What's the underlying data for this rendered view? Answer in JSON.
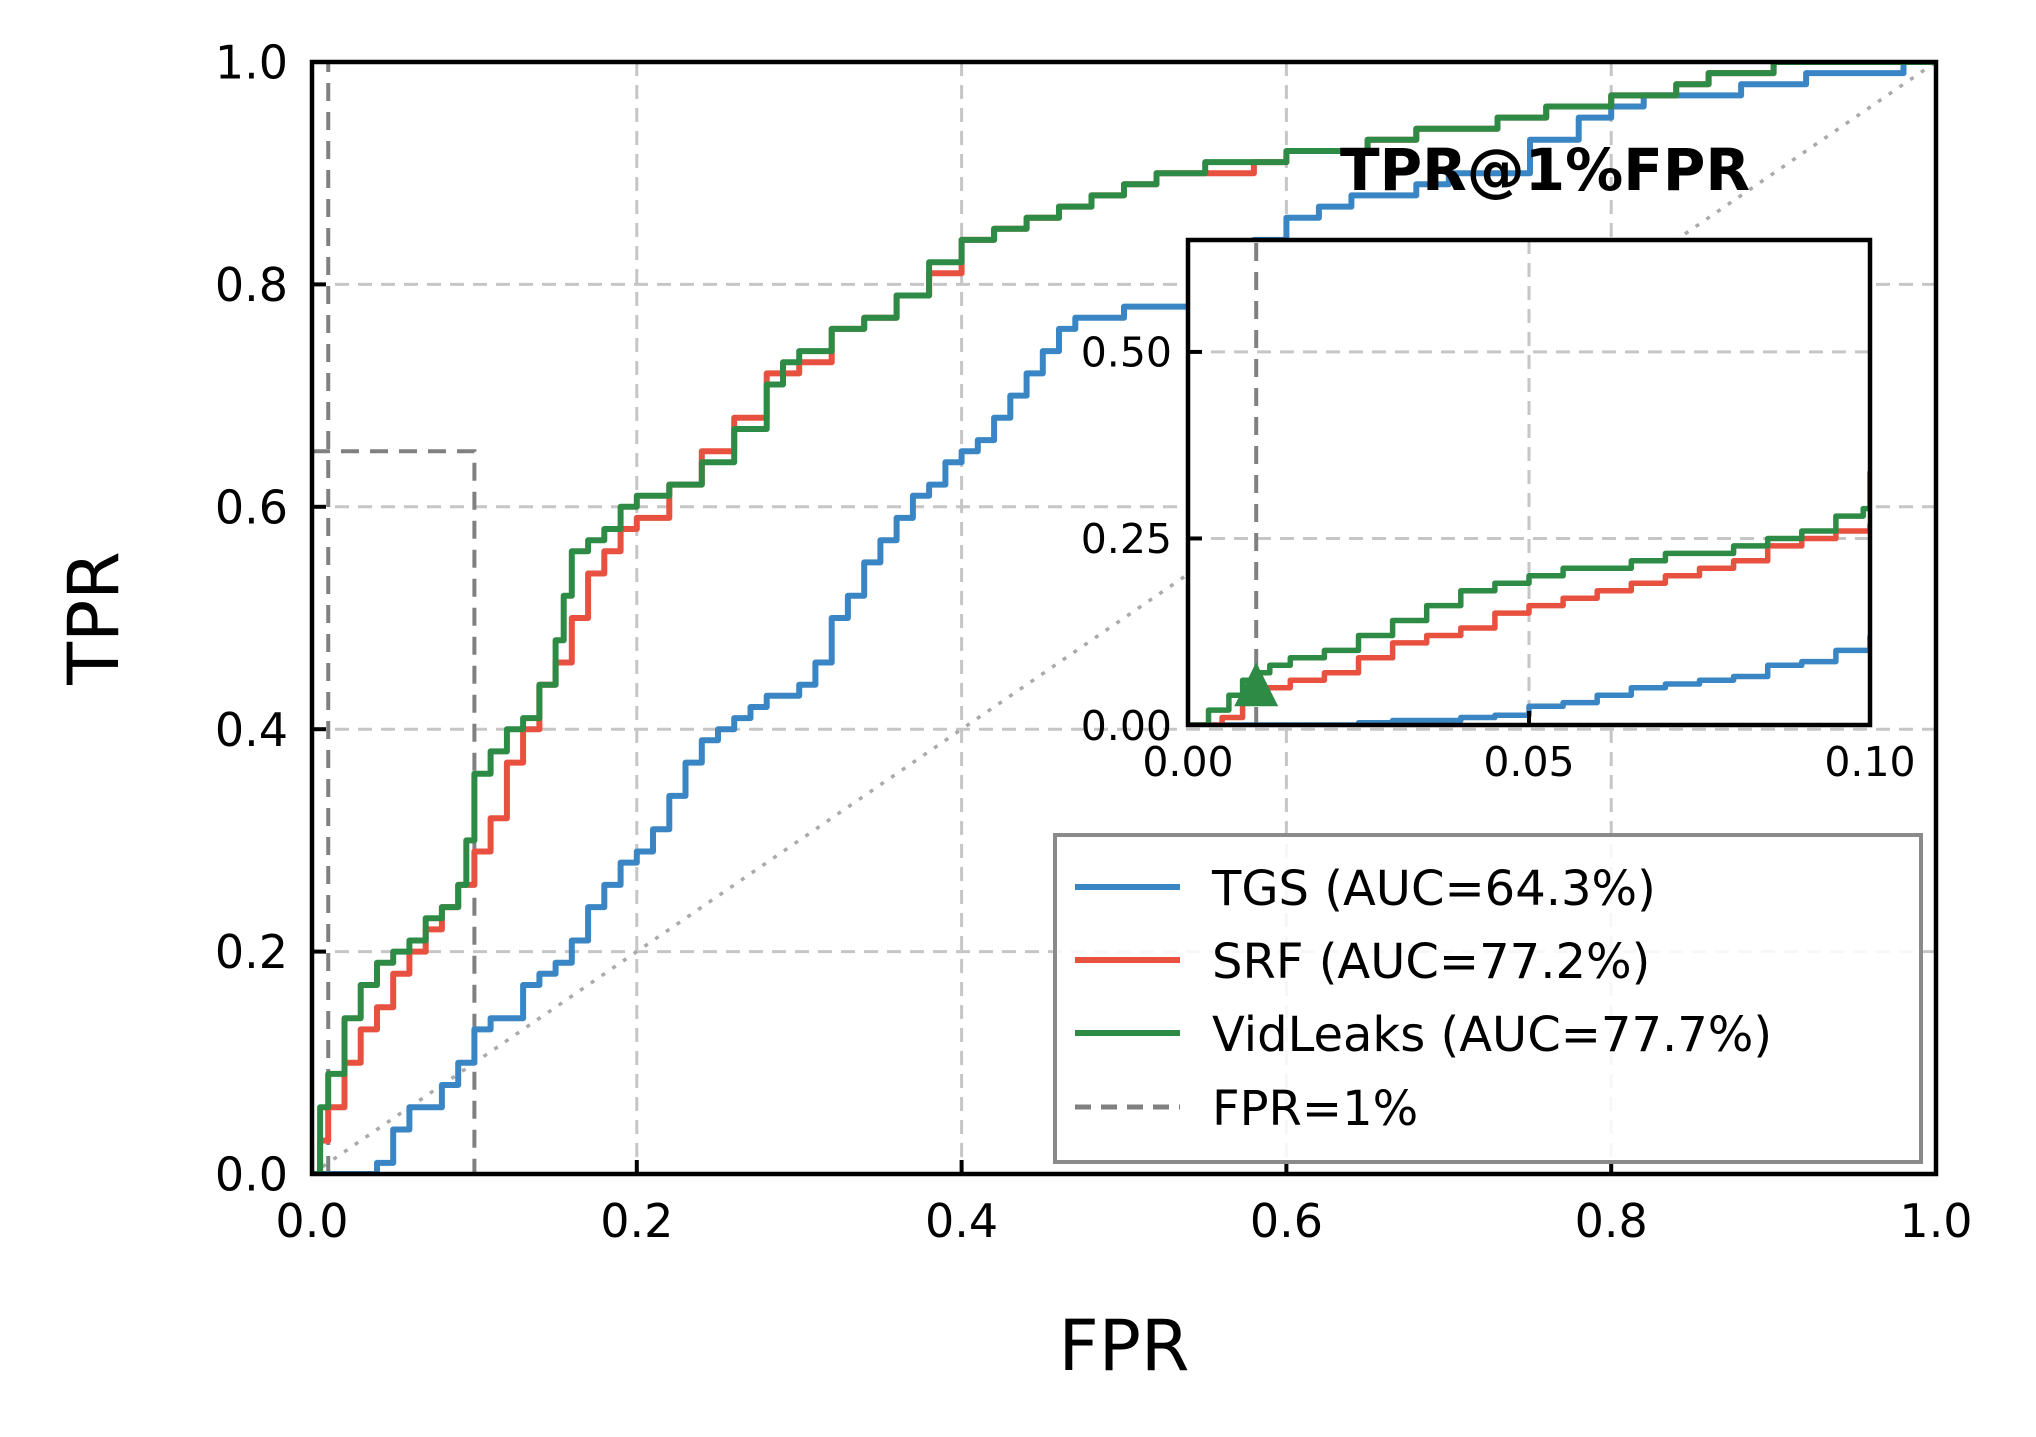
{
  "chart_data": [
    {
      "id": "main",
      "type": "line",
      "xlabel": "FPR",
      "ylabel": "TPR",
      "xlim": [
        0.0,
        1.0
      ],
      "ylim": [
        0.0,
        1.0
      ],
      "xticks": [
        "0.0",
        "0.2",
        "0.4",
        "0.6",
        "0.8",
        "1.0"
      ],
      "yticks": [
        "0.0",
        "0.2",
        "0.4",
        "0.6",
        "0.8",
        "1.0"
      ],
      "grid": true,
      "legend_position": "lower-right",
      "legend": [
        {
          "label": "TGS (AUC=64.3%)",
          "color": "#3a86c4",
          "style": "solid"
        },
        {
          "label": "SRF (AUC=77.2%)",
          "color": "#e8513f",
          "style": "solid"
        },
        {
          "label": "VidLeaks (AUC=77.7%)",
          "color": "#2e8b45",
          "style": "solid"
        },
        {
          "label": "FPR=1%",
          "color": "#808080",
          "style": "dashed"
        }
      ],
      "reference_lines": [
        {
          "name": "chance",
          "points": [
            [
              0,
              0
            ],
            [
              1,
              1
            ]
          ],
          "style": "dotted",
          "color": "#aaaaaa"
        },
        {
          "name": "FPR=1%",
          "x": 0.01,
          "style": "dashed",
          "color": "#808080"
        }
      ],
      "zoom_region": {
        "x": [
          0.0,
          0.1
        ],
        "y": [
          0.0,
          0.65
        ]
      },
      "series": [
        {
          "name": "TGS",
          "color": "#3a86c4",
          "x": [
            0.0,
            0.02,
            0.04,
            0.05,
            0.06,
            0.08,
            0.09,
            0.1,
            0.11,
            0.12,
            0.13,
            0.14,
            0.15,
            0.16,
            0.17,
            0.18,
            0.19,
            0.2,
            0.21,
            0.22,
            0.23,
            0.24,
            0.25,
            0.26,
            0.27,
            0.28,
            0.3,
            0.31,
            0.32,
            0.33,
            0.34,
            0.35,
            0.36,
            0.37,
            0.38,
            0.39,
            0.4,
            0.41,
            0.42,
            0.43,
            0.44,
            0.45,
            0.46,
            0.47,
            0.48,
            0.5,
            0.52,
            0.54,
            0.55,
            0.56,
            0.58,
            0.6,
            0.62,
            0.64,
            0.66,
            0.68,
            0.7,
            0.72,
            0.75,
            0.78,
            0.8,
            0.82,
            0.85,
            0.88,
            0.9,
            0.92,
            0.95,
            0.98,
            1.0
          ],
          "y": [
            0.0,
            0.0,
            0.01,
            0.04,
            0.06,
            0.08,
            0.1,
            0.13,
            0.14,
            0.14,
            0.17,
            0.18,
            0.19,
            0.21,
            0.24,
            0.26,
            0.28,
            0.29,
            0.31,
            0.34,
            0.37,
            0.39,
            0.4,
            0.41,
            0.42,
            0.43,
            0.44,
            0.46,
            0.5,
            0.52,
            0.55,
            0.57,
            0.59,
            0.61,
            0.62,
            0.64,
            0.65,
            0.66,
            0.68,
            0.7,
            0.72,
            0.74,
            0.76,
            0.77,
            0.77,
            0.78,
            0.78,
            0.79,
            0.81,
            0.82,
            0.84,
            0.86,
            0.87,
            0.88,
            0.88,
            0.89,
            0.9,
            0.9,
            0.93,
            0.95,
            0.96,
            0.97,
            0.97,
            0.98,
            0.98,
            0.99,
            0.99,
            1.0,
            1.0
          ]
        },
        {
          "name": "SRF",
          "color": "#e8513f",
          "x": [
            0.0,
            0.005,
            0.01,
            0.02,
            0.03,
            0.04,
            0.05,
            0.06,
            0.07,
            0.08,
            0.09,
            0.1,
            0.11,
            0.12,
            0.13,
            0.14,
            0.15,
            0.16,
            0.17,
            0.18,
            0.19,
            0.2,
            0.22,
            0.24,
            0.26,
            0.28,
            0.3,
            0.32,
            0.34,
            0.36,
            0.38,
            0.4,
            0.42,
            0.44,
            0.46,
            0.48,
            0.5,
            0.52,
            0.55,
            0.58,
            0.6,
            0.62,
            0.65,
            0.68,
            0.7,
            0.73,
            0.76,
            0.78,
            0.8,
            0.82,
            0.84,
            0.86,
            0.88,
            0.9,
            0.93,
            0.96,
            1.0
          ],
          "y": [
            0.0,
            0.03,
            0.06,
            0.1,
            0.13,
            0.15,
            0.18,
            0.2,
            0.22,
            0.24,
            0.26,
            0.29,
            0.32,
            0.37,
            0.4,
            0.44,
            0.46,
            0.5,
            0.54,
            0.56,
            0.58,
            0.59,
            0.62,
            0.65,
            0.68,
            0.72,
            0.73,
            0.76,
            0.77,
            0.79,
            0.81,
            0.84,
            0.85,
            0.86,
            0.87,
            0.88,
            0.89,
            0.9,
            0.9,
            0.91,
            0.92,
            0.92,
            0.93,
            0.94,
            0.94,
            0.95,
            0.96,
            0.96,
            0.97,
            0.97,
            0.98,
            0.99,
            0.99,
            1.0,
            1.0,
            1.0,
            1.0
          ]
        },
        {
          "name": "VidLeaks",
          "color": "#2e8b45",
          "x": [
            0.0,
            0.005,
            0.01,
            0.02,
            0.03,
            0.04,
            0.05,
            0.06,
            0.07,
            0.08,
            0.09,
            0.095,
            0.1,
            0.11,
            0.12,
            0.13,
            0.14,
            0.15,
            0.155,
            0.16,
            0.17,
            0.18,
            0.19,
            0.2,
            0.22,
            0.24,
            0.26,
            0.28,
            0.29,
            0.3,
            0.32,
            0.34,
            0.36,
            0.38,
            0.4,
            0.42,
            0.44,
            0.46,
            0.48,
            0.5,
            0.52,
            0.55,
            0.58,
            0.6,
            0.62,
            0.65,
            0.68,
            0.7,
            0.73,
            0.76,
            0.78,
            0.8,
            0.82,
            0.84,
            0.86,
            0.88,
            0.9,
            0.93,
            0.96,
            1.0
          ],
          "y": [
            0.0,
            0.06,
            0.09,
            0.14,
            0.17,
            0.19,
            0.2,
            0.21,
            0.23,
            0.24,
            0.26,
            0.3,
            0.36,
            0.38,
            0.4,
            0.41,
            0.44,
            0.48,
            0.52,
            0.56,
            0.57,
            0.58,
            0.6,
            0.61,
            0.62,
            0.64,
            0.67,
            0.71,
            0.73,
            0.74,
            0.76,
            0.77,
            0.79,
            0.82,
            0.84,
            0.85,
            0.86,
            0.87,
            0.88,
            0.89,
            0.9,
            0.91,
            0.91,
            0.92,
            0.92,
            0.93,
            0.94,
            0.94,
            0.95,
            0.96,
            0.96,
            0.97,
            0.97,
            0.98,
            0.99,
            0.99,
            1.0,
            1.0,
            1.0,
            1.0
          ]
        }
      ]
    },
    {
      "id": "inset",
      "type": "line",
      "title": "TPR@1%FPR",
      "xlim": [
        0.0,
        0.1
      ],
      "ylim": [
        0.0,
        0.65
      ],
      "xticks": [
        "0.00",
        "0.05",
        "0.10"
      ],
      "yticks": [
        "0.00",
        "0.25",
        "0.50"
      ],
      "grid": true,
      "marker": {
        "shape": "triangle",
        "x": 0.01,
        "y": 0.06,
        "color": "#2e8b45"
      },
      "reference_lines": [
        {
          "name": "FPR=1%",
          "x": 0.01,
          "style": "dashed",
          "color": "#808080"
        }
      ],
      "series": [
        {
          "name": "TGS",
          "color": "#3a86c4",
          "x": [
            0.0,
            0.02,
            0.025,
            0.03,
            0.04,
            0.045,
            0.05,
            0.055,
            0.06,
            0.065,
            0.07,
            0.075,
            0.08,
            0.085,
            0.09,
            0.095,
            0.1
          ],
          "y": [
            0.0,
            0.0,
            0.003,
            0.006,
            0.01,
            0.013,
            0.025,
            0.03,
            0.04,
            0.05,
            0.055,
            0.06,
            0.065,
            0.08,
            0.085,
            0.1,
            0.12
          ]
        },
        {
          "name": "SRF",
          "color": "#e8513f",
          "x": [
            0.0,
            0.005,
            0.008,
            0.01,
            0.015,
            0.02,
            0.025,
            0.03,
            0.035,
            0.04,
            0.045,
            0.05,
            0.055,
            0.06,
            0.065,
            0.07,
            0.075,
            0.08,
            0.085,
            0.09,
            0.095,
            0.1
          ],
          "y": [
            0.0,
            0.01,
            0.03,
            0.05,
            0.06,
            0.07,
            0.09,
            0.11,
            0.12,
            0.13,
            0.15,
            0.16,
            0.17,
            0.18,
            0.19,
            0.2,
            0.21,
            0.22,
            0.24,
            0.25,
            0.26,
            0.27
          ]
        },
        {
          "name": "VidLeaks",
          "color": "#2e8b45",
          "x": [
            0.0,
            0.003,
            0.006,
            0.008,
            0.01,
            0.012,
            0.015,
            0.02,
            0.025,
            0.03,
            0.035,
            0.04,
            0.045,
            0.05,
            0.055,
            0.06,
            0.065,
            0.07,
            0.075,
            0.08,
            0.085,
            0.09,
            0.095,
            0.099,
            0.1
          ],
          "y": [
            0.0,
            0.02,
            0.04,
            0.06,
            0.07,
            0.08,
            0.09,
            0.1,
            0.12,
            0.14,
            0.16,
            0.18,
            0.19,
            0.2,
            0.21,
            0.21,
            0.22,
            0.23,
            0.23,
            0.24,
            0.25,
            0.26,
            0.28,
            0.29,
            0.34
          ]
        }
      ]
    }
  ]
}
